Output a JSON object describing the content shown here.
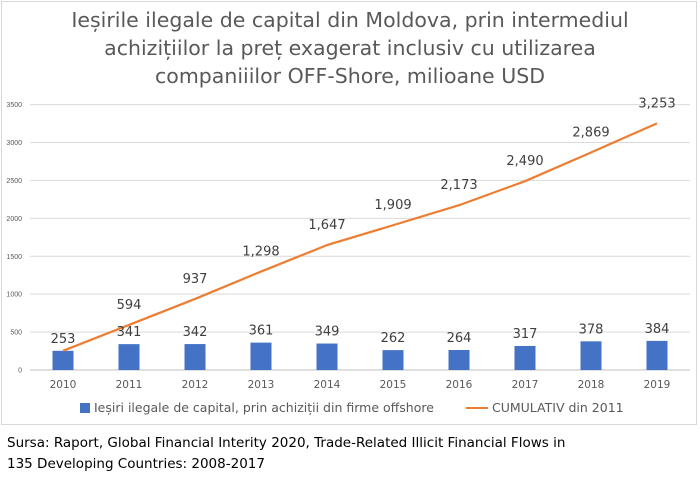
{
  "chart_data": {
    "type": "bar+line",
    "title_lines": [
      "Ieșirile ilegale de capital din Moldova, prin intermediul",
      "achizițiilor la preț exagerat inclusiv cu utilizarea",
      "companiiilor OFF-Shore, milioane USD"
    ],
    "categories": [
      "2010",
      "2011",
      "2012",
      "2013",
      "2014",
      "2015",
      "2016",
      "2017",
      "2018",
      "2019"
    ],
    "series": [
      {
        "name": "Ieșiri ilegale de capital, prin achiziții din firme offshore",
        "type": "bar",
        "color": "#4472c4",
        "values": [
          253,
          341,
          342,
          361,
          349,
          262,
          264,
          317,
          378,
          384
        ],
        "labels": [
          "253",
          "341",
          "342",
          "361",
          "349",
          "262",
          "264",
          "317",
          "378",
          "384"
        ]
      },
      {
        "name": "CUMULATIV din 2011",
        "type": "line",
        "color": "#ed7d31",
        "values": [
          253,
          594,
          937,
          1298,
          1647,
          1909,
          2173,
          2490,
          2869,
          3253
        ],
        "labels": [
          "",
          "594",
          "937",
          "1,298",
          "1,647",
          "1,909",
          "2,173",
          "2,490",
          "2,869",
          "3,253"
        ]
      }
    ],
    "y_ticks": [
      "0",
      "500",
      "1000",
      "1500",
      "2000",
      "2500",
      "3000",
      "3500"
    ],
    "ylim": [
      0,
      3500
    ],
    "grid": true,
    "legend_position": "bottom"
  },
  "source_lines": [
    "Sursa: Raport, Global Financial Interity 2020, Trade-Related Illicit Financial Flows in",
    "135 Developing Countries: 2008-2017"
  ]
}
